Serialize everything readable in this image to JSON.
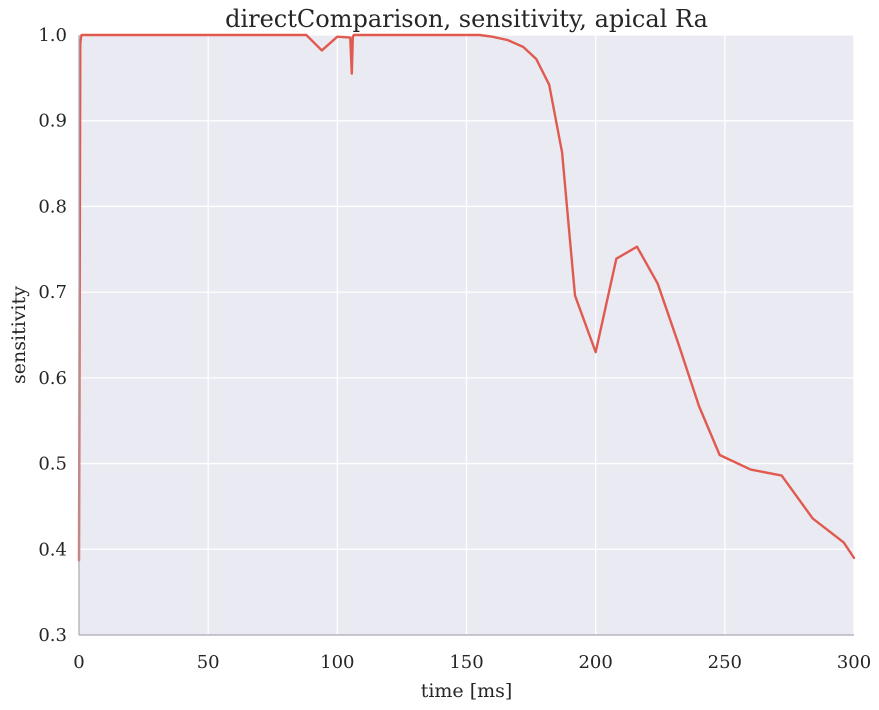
{
  "chart_data": {
    "type": "line",
    "title": "directComparison, sensitivity, apical Ra",
    "xlabel": "time [ms]",
    "ylabel": "sensitivity",
    "xlim": [
      0,
      300
    ],
    "ylim": [
      0.3,
      1.0
    ],
    "x_ticks": [
      0,
      50,
      100,
      150,
      200,
      250,
      300
    ],
    "y_ticks": [
      0.3,
      0.4,
      0.5,
      0.6,
      0.7,
      0.8,
      0.9,
      1.0
    ],
    "x_tick_labels": [
      "0",
      "50",
      "100",
      "150",
      "200",
      "250",
      "300"
    ],
    "y_tick_labels": [
      "0.3",
      "0.4",
      "0.5",
      "0.6",
      "0.7",
      "0.8",
      "0.9",
      "1.0"
    ],
    "grid": true,
    "background_color": "#eaeaf2",
    "series": [
      {
        "color": "#e05a4f",
        "x": [
          0,
          0.5,
          0.8,
          1,
          50,
          80,
          88,
          94,
          100,
          105,
          105.6,
          106,
          106.4,
          110,
          130,
          150,
          155,
          160,
          166,
          172,
          177,
          182,
          187,
          192,
          200,
          208,
          216,
          224,
          232,
          240,
          248,
          260,
          272,
          284,
          296,
          300
        ],
        "y": [
          0.387,
          0.99,
          0.998,
          1.0,
          1.0,
          1.0,
          1.0,
          0.982,
          0.998,
          0.997,
          0.955,
          0.998,
          1.0,
          1.0,
          1.0,
          1.0,
          1.0,
          0.998,
          0.994,
          0.986,
          0.972,
          0.942,
          0.863,
          0.696,
          0.63,
          0.739,
          0.753,
          0.71,
          0.64,
          0.567,
          0.51,
          0.493,
          0.486,
          0.436,
          0.408,
          0.39
        ]
      }
    ]
  }
}
